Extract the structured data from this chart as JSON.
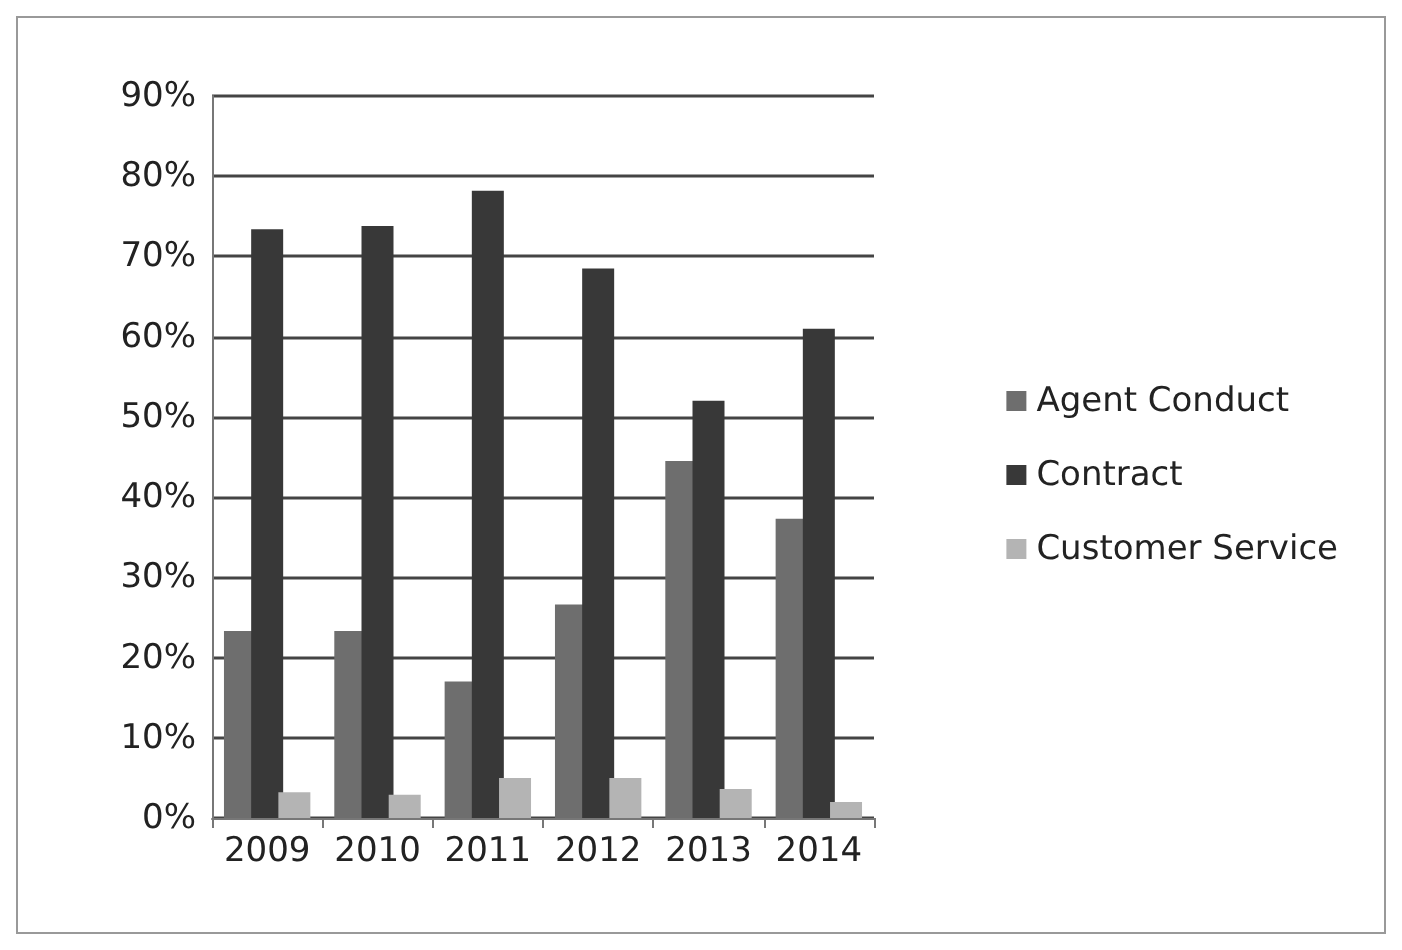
{
  "chart_data": {
    "type": "bar",
    "categories": [
      "2009",
      "2010",
      "2011",
      "2012",
      "2013",
      "2014"
    ],
    "series": [
      {
        "name": "Agent Conduct",
        "color": "#6e6e6e",
        "values": [
          23.3,
          23.3,
          17,
          26.6,
          44.5,
          37.3
        ]
      },
      {
        "name": "Contract",
        "color": "#383838",
        "values": [
          73.4,
          73.8,
          78.2,
          68.5,
          52,
          61
        ]
      },
      {
        "name": "Customer Service",
        "color": "#b4b4b4",
        "values": [
          3.2,
          2.9,
          5,
          5,
          3.6,
          2
        ]
      }
    ],
    "ylim": [
      0,
      90
    ],
    "yticks": [
      {
        "value": 0,
        "label": "0%"
      },
      {
        "value": 10,
        "label": "10%"
      },
      {
        "value": 20,
        "label": "20%"
      },
      {
        "value": 30,
        "label": "30%"
      },
      {
        "value": 40,
        "label": "40%"
      },
      {
        "value": 50,
        "label": "50%"
      },
      {
        "value": 60,
        "label": "60%"
      },
      {
        "value": 70,
        "label": "70%"
      },
      {
        "value": 80,
        "label": "80%"
      },
      {
        "value": 90,
        "label": "90%"
      }
    ],
    "grid": "y",
    "legend": "right"
  }
}
